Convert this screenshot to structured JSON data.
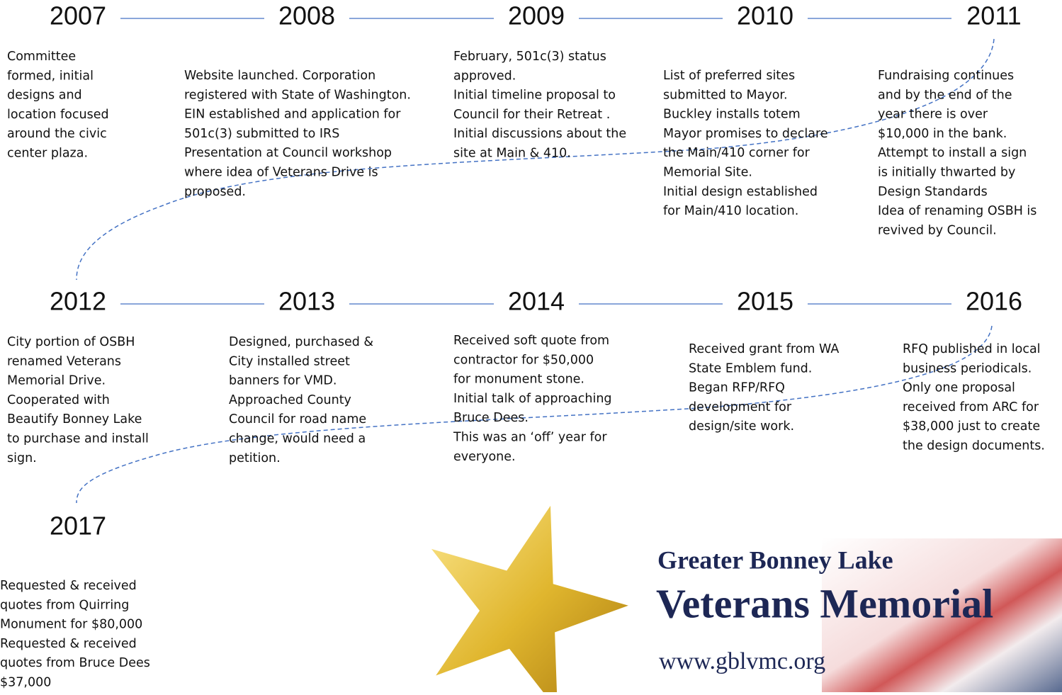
{
  "timeline": {
    "entries": [
      {
        "year": "2007",
        "lines": [
          "Committee",
          "formed, initial",
          "designs and",
          "location focused",
          "around the civic",
          "center plaza."
        ]
      },
      {
        "year": "2008",
        "lines": [
          "Website launched. Corporation",
          "registered with State of Washington.",
          "EIN established and application for",
          "501c(3) submitted to IRS",
          "Presentation at Council workshop",
          "where idea of Veterans Drive is",
          "proposed."
        ]
      },
      {
        "year": "2009",
        "lines": [
          "February, 501c(3) status",
          "approved.",
          "Initial timeline proposal to",
          "Council for their Retreat .",
          "Initial discussions about the",
          "site at Main & 410."
        ]
      },
      {
        "year": "2010",
        "lines": [
          "List of preferred sites",
          "submitted to Mayor.",
          "Buckley installs totem",
          "Mayor promises to declare",
          "the Main/410 corner for",
          "Memorial Site.",
          "Initial design established",
          "for Main/410 location."
        ]
      },
      {
        "year": "2011",
        "lines": [
          "Fundraising continues",
          "and by the end of the",
          "year there is over",
          "$10,000 in the bank.",
          "Attempt to install a sign",
          "is initially thwarted by",
          "Design Standards",
          "Idea of renaming OSBH is",
          "revived by Council."
        ]
      },
      {
        "year": "2012",
        "lines": [
          "City portion of OSBH",
          "renamed Veterans",
          "Memorial Drive.",
          "Cooperated with",
          "Beautify Bonney Lake",
          "to purchase and install",
          "sign."
        ]
      },
      {
        "year": "2013",
        "lines": [
          "Designed, purchased &",
          "City installed street",
          "banners for VMD.",
          "Approached County",
          "Council for road name",
          "change, would need a",
          "petition."
        ]
      },
      {
        "year": "2014",
        "lines": [
          "Received soft quote from",
          "contractor for $50,000",
          "for monument stone.",
          "Initial talk of approaching",
          "Bruce Dees.",
          "This was an ‘off’ year for",
          "everyone."
        ]
      },
      {
        "year": "2015",
        "lines": [
          "Received grant from WA",
          "State Emblem fund.",
          "Began RFP/RFQ",
          "development for",
          "design/site work."
        ]
      },
      {
        "year": "2016",
        "lines": [
          "RFQ published in local",
          "business periodicals.",
          "Only one proposal",
          "received from ARC for",
          "$38,000 just to create",
          "the design documents."
        ]
      },
      {
        "year": "2017",
        "lines": [
          "Requested & received",
          "quotes from Quirring",
          "Monument for  $80,000",
          "Requested & received",
          "quotes from Bruce Dees",
          "$37,000"
        ]
      }
    ]
  },
  "logo": {
    "line1": "Greater Bonney Lake",
    "line2": "Veterans Memorial",
    "url": "www.gblvmc.org"
  }
}
